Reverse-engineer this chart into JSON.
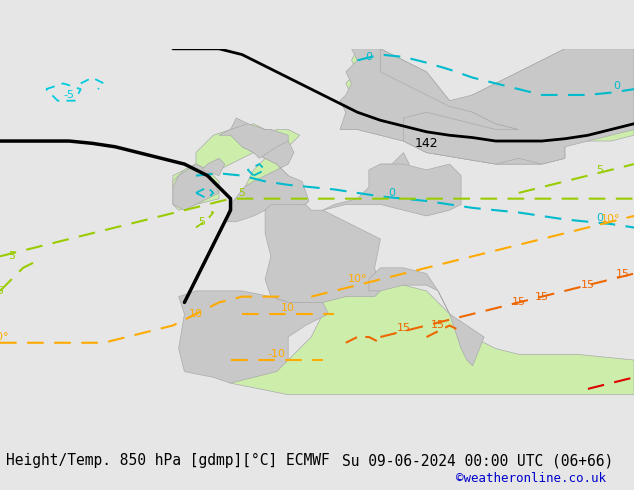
{
  "title_left": "Height/Temp. 850 hPa [gdmp][°C] ECMWF",
  "title_right": "Su 09-06-2024 00:00 UTC (06+66)",
  "copyright": "©weatheronline.co.uk",
  "bg_color": "#e6e6e6",
  "land_color": "#c8c8c8",
  "warm_color": "#cceeaa",
  "title_fontsize": 10.5,
  "copyright_color": "#0000cc",
  "lon_min": -25,
  "lon_max": 30,
  "lat_min": 35,
  "lat_max": 65,
  "contour_colors": {
    "minus5": "#00ccdd",
    "zero": "#00bbcc",
    "five": "#99cc00",
    "ten": "#ffaa00",
    "fifteen": "#ee6600",
    "twenty": "#cc2200",
    "black": "#000000",
    "red": "#dd0000"
  }
}
